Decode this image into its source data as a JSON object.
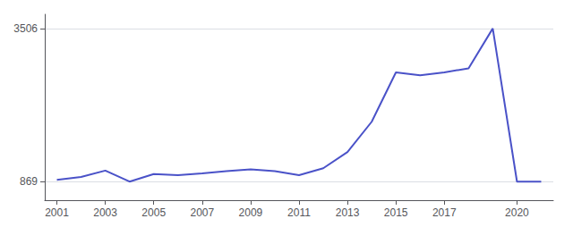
{
  "chart_data": {
    "type": "line",
    "x": [
      2001,
      2002,
      2003,
      2004,
      2005,
      2006,
      2007,
      2008,
      2009,
      2010,
      2011,
      2012,
      2013,
      2014,
      2015,
      2016,
      2017,
      2018,
      2019,
      2020,
      2021
    ],
    "values": [
      900,
      950,
      1060,
      870,
      1000,
      980,
      1010,
      1050,
      1080,
      1050,
      980,
      1100,
      1380,
      1900,
      2750,
      2700,
      2750,
      2820,
      3506,
      869,
      869
    ],
    "color": "#4a52c8",
    "xlim": [
      2000.5,
      2021.5
    ],
    "xticks": [
      2001,
      2003,
      2005,
      2007,
      2009,
      2011,
      2013,
      2015,
      2017,
      2020
    ],
    "ylim": [
      550,
      3750
    ],
    "yticks": [
      869,
      3506
    ],
    "grid": true
  }
}
